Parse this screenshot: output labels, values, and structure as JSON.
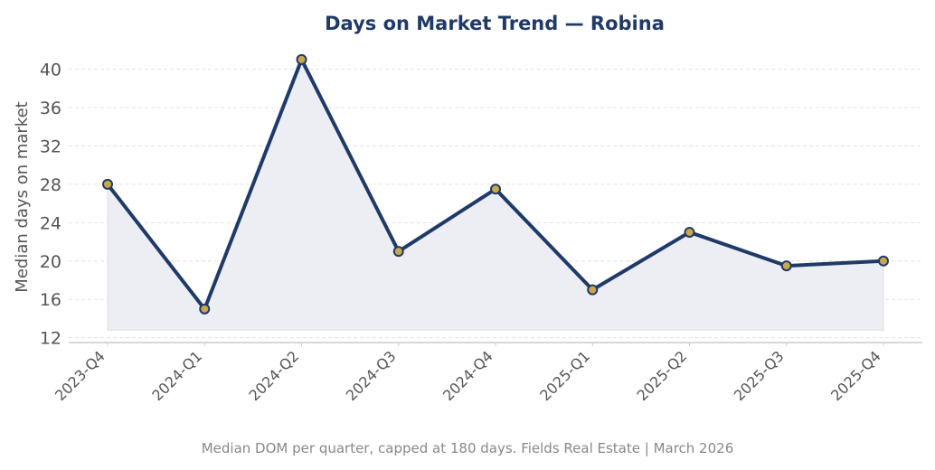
{
  "chart_data": {
    "type": "line",
    "title": "Days on Market Trend — Robina",
    "xlabel": "",
    "ylabel": "Median days on market",
    "categories": [
      "2023-Q4",
      "2024-Q1",
      "2024-Q2",
      "2024-Q3",
      "2024-Q4",
      "2025-Q1",
      "2025-Q2",
      "2025-Q3",
      "2025-Q4"
    ],
    "series": [
      {
        "values": [
          28,
          15,
          41,
          21,
          27.5,
          17,
          23,
          19.5,
          20
        ]
      }
    ],
    "ylim": [
      11.5,
      42.5
    ],
    "yticks": [
      12,
      16,
      20,
      24,
      28,
      32,
      36,
      40
    ],
    "fill_base": 12.8,
    "grid": "horizontal-dashed",
    "colors": {
      "line": "#1f3a68",
      "marker_fill": "#c9a84a",
      "marker_edge": "#1f3a68",
      "area": "#eceef3",
      "title": "#1f3a68",
      "tick_text": "#555555",
      "footnote": "#888888",
      "grid": "#dddddd",
      "axis": "#cccccc"
    }
  },
  "footnote": "Median DOM per quarter, capped at 180 days. Fields Real Estate | March 2026"
}
